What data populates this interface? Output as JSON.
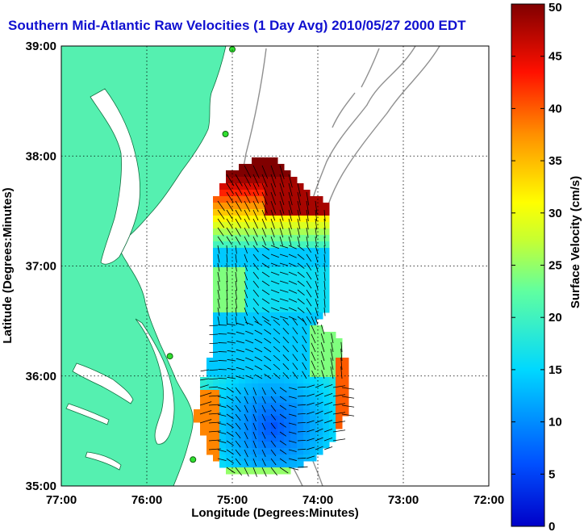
{
  "chart_data": {
    "type": "heatmap",
    "title": "Southern Mid-Atlantic Raw Velocities (1 Day Avg) 2010/05/27 2000 EDT",
    "xlabel": "Longitude (Degrees:Minutes)",
    "ylabel": "Latitude (Degrees:Minutes)",
    "colorbar_label": "Surface Velocity (cm/s)",
    "x_ticks": [
      "77:00",
      "76:00",
      "75:00",
      "74:00",
      "73:00",
      "72:00"
    ],
    "y_ticks": [
      "39:00",
      "38:00",
      "37:00",
      "36:00",
      "35:00"
    ],
    "colorbar_ticks": [
      "0",
      "5",
      "10",
      "15",
      "20",
      "25",
      "30",
      "35",
      "40",
      "45",
      "50"
    ],
    "xlim": [
      -77,
      -72
    ],
    "ylim": [
      35,
      39
    ],
    "clim": [
      0,
      50
    ],
    "grid": true,
    "colormap": "jet",
    "land_color": "#55f0b0",
    "stations": [
      {
        "lon": -75.0,
        "lat": 38.97
      },
      {
        "lon": -75.08,
        "lat": 38.2
      },
      {
        "lon": -75.73,
        "lat": 36.18
      },
      {
        "lon": -75.46,
        "lat": 35.24
      }
    ]
  }
}
